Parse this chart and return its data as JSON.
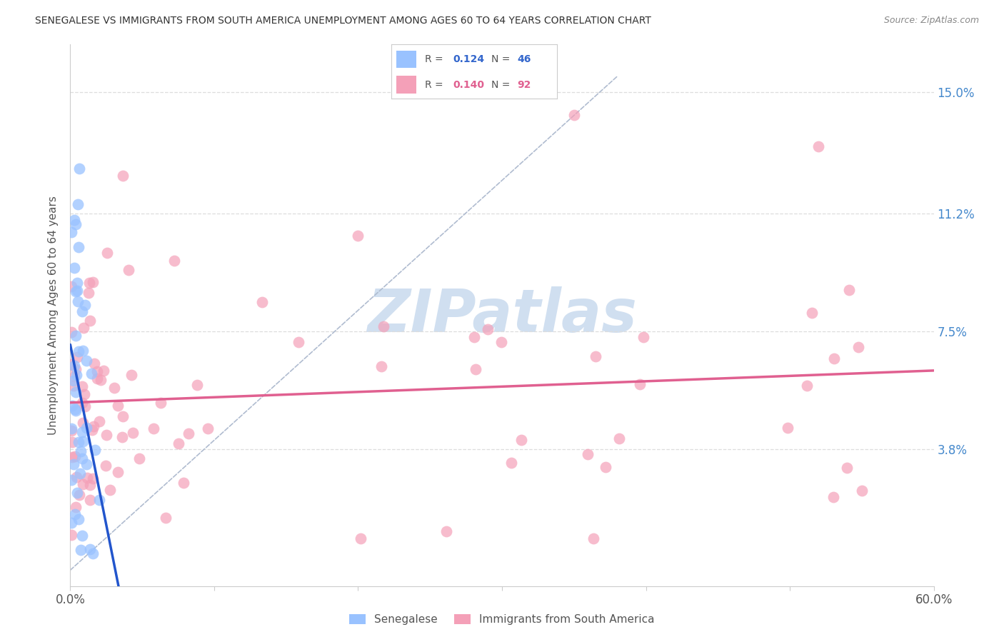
{
  "title": "SENEGALESE VS IMMIGRANTS FROM SOUTH AMERICA UNEMPLOYMENT AMONG AGES 60 TO 64 YEARS CORRELATION CHART",
  "source": "Source: ZipAtlas.com",
  "ylabel": "Unemployment Among Ages 60 to 64 years",
  "xlim": [
    0.0,
    0.6
  ],
  "ylim": [
    -0.005,
    0.165
  ],
  "ytick_positions": [
    0.038,
    0.075,
    0.112,
    0.15
  ],
  "ytick_labels": [
    "3.8%",
    "7.5%",
    "11.2%",
    "15.0%"
  ],
  "R_blue": "0.124",
  "N_blue": "46",
  "R_pink": "0.140",
  "N_pink": "92",
  "blue_color": "#99c2ff",
  "pink_color": "#f4a0b8",
  "trend_blue_color": "#2255cc",
  "trend_pink_color": "#e06090",
  "diag_line_color": "#b0bcd0",
  "watermark_color": "#d0dff0",
  "background_color": "#ffffff",
  "legend_box_color": "#f8f8f8",
  "legend_border_color": "#dddddd"
}
